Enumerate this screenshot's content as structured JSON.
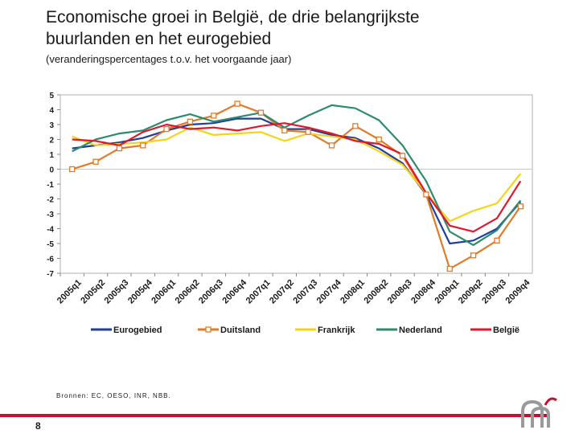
{
  "header": {
    "title_line1": "Economische groei in België, de drie belangrijkste",
    "title_line2": "buurlanden en het eurogebied",
    "subtitle": "(veranderingspercentages t.o.v. het voorgaande jaar)"
  },
  "footer": {
    "source": "Bronnen: EC, OESO, INR, NBB.",
    "page_number": "8"
  },
  "chart_data": {
    "type": "line",
    "title": "Economische groei in België, de drie belangrijkste buurlanden en het eurogebied",
    "xlabel": "",
    "ylabel": "",
    "ylim": [
      -7,
      5
    ],
    "yticks": [
      5,
      4,
      3,
      2,
      1,
      0,
      -1,
      -2,
      -3,
      -4,
      -5,
      -6,
      -7
    ],
    "grid": false,
    "legend_position": "bottom",
    "categories": [
      "2005q1",
      "2005q2",
      "2005q3",
      "2005q4",
      "2006q1",
      "2006q2",
      "2006q3",
      "2006q4",
      "2007q1",
      "2007q2",
      "2007q3",
      "2007q4",
      "2008q1",
      "2008q2",
      "2008q3",
      "2008q4",
      "2009q1",
      "2009q2",
      "2009q3",
      "2009q4"
    ],
    "series": [
      {
        "name": "Eurogebied",
        "color": "#1f3f9a",
        "marker": "none",
        "values": [
          1.4,
          1.6,
          1.8,
          2.1,
          2.6,
          3.0,
          3.1,
          3.4,
          3.4,
          2.7,
          2.7,
          2.3,
          2.1,
          1.4,
          0.4,
          -1.7,
          -5.0,
          -4.8,
          -4.0,
          -2.2
        ]
      },
      {
        "name": "Duitsland",
        "color": "#e07b2a",
        "marker": "square",
        "values": [
          0.0,
          0.5,
          1.4,
          1.6,
          2.7,
          3.2,
          3.6,
          4.4,
          3.8,
          2.6,
          2.5,
          1.6,
          2.9,
          2.0,
          0.9,
          -1.7,
          -6.7,
          -5.8,
          -4.8,
          -2.5
        ]
      },
      {
        "name": "Frankrijk",
        "color": "#f5d31a",
        "marker": "none",
        "values": [
          2.2,
          1.6,
          1.7,
          1.8,
          2.0,
          2.8,
          2.3,
          2.4,
          2.5,
          1.9,
          2.4,
          2.2,
          2.0,
          1.2,
          0.3,
          -1.6,
          -3.5,
          -2.8,
          -2.3,
          -0.3
        ]
      },
      {
        "name": "Nederland",
        "color": "#2e8b6f",
        "marker": "none",
        "values": [
          1.2,
          2.0,
          2.4,
          2.6,
          3.3,
          3.7,
          3.2,
          3.5,
          3.8,
          2.8,
          3.6,
          4.3,
          4.1,
          3.3,
          1.6,
          -0.8,
          -4.2,
          -5.1,
          -4.1,
          -2.1
        ]
      },
      {
        "name": "België",
        "color": "#e0182d",
        "marker": "none",
        "values": [
          2.0,
          1.9,
          1.6,
          2.5,
          3.0,
          2.7,
          2.8,
          2.6,
          2.9,
          3.1,
          2.8,
          2.4,
          1.9,
          1.7,
          1.0,
          -1.6,
          -3.8,
          -4.2,
          -3.3,
          -0.8
        ]
      }
    ]
  }
}
